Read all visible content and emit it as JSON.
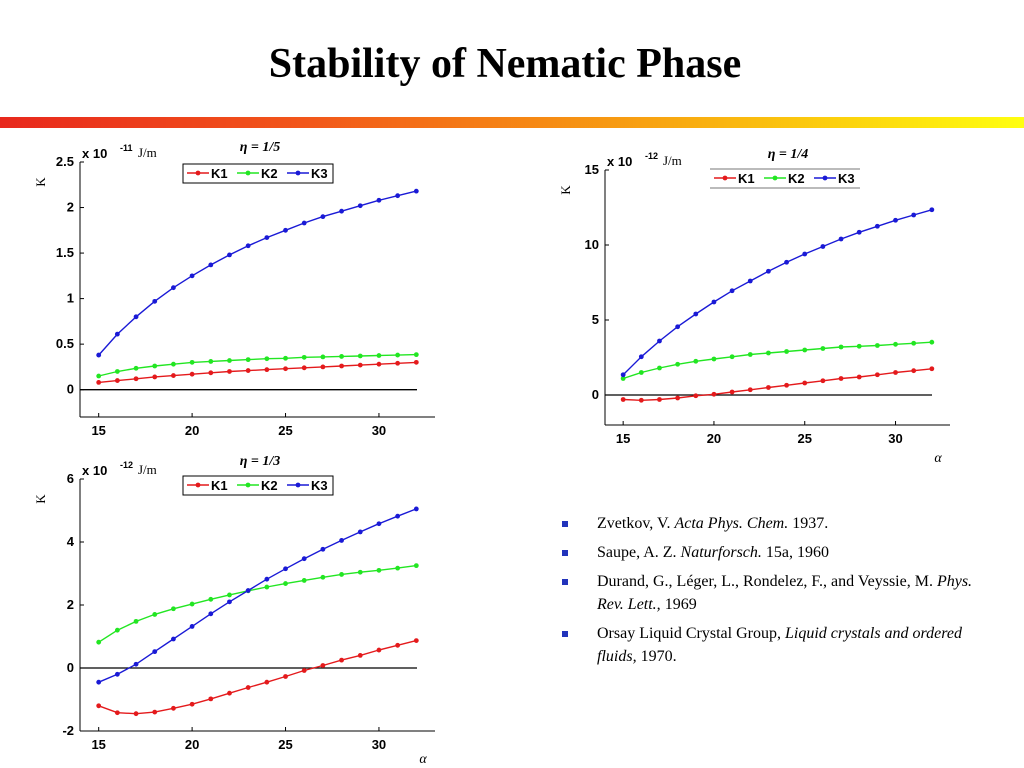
{
  "title": "Stability of Nematic Phase",
  "colors": {
    "K1": "#e41a1c",
    "K2": "#22e622",
    "K3": "#1a1ad6",
    "bullet": "#2233bb"
  },
  "chart_data": [
    {
      "type": "line",
      "annotation": "η = 1/5",
      "ylabel": "K",
      "y_multiplier": "x 10",
      "y_multiplier_exp": "-11",
      "y_unit": "J/m",
      "xlabel": "",
      "xlim": [
        14,
        33
      ],
      "ylim": [
        -0.3,
        2.5
      ],
      "xticks": [
        15,
        20,
        25,
        30
      ],
      "yticks": [
        0,
        0.5,
        1,
        1.5,
        2,
        2.5
      ],
      "ytick_labels": [
        "0",
        "0.5",
        "1",
        "1.5",
        "2",
        "2.5"
      ],
      "legend": [
        "K1",
        "K2",
        "K3"
      ],
      "legend_position": "top",
      "x": [
        15,
        16,
        17,
        18,
        19,
        20,
        21,
        22,
        23,
        24,
        25,
        26,
        27,
        28,
        29,
        30,
        31,
        32
      ],
      "series": [
        {
          "name": "K1",
          "values": [
            0.08,
            0.1,
            0.12,
            0.14,
            0.155,
            0.17,
            0.185,
            0.2,
            0.21,
            0.22,
            0.23,
            0.24,
            0.25,
            0.26,
            0.27,
            0.28,
            0.29,
            0.3
          ]
        },
        {
          "name": "K2",
          "values": [
            0.15,
            0.2,
            0.235,
            0.26,
            0.28,
            0.3,
            0.31,
            0.32,
            0.33,
            0.34,
            0.345,
            0.355,
            0.36,
            0.365,
            0.37,
            0.375,
            0.38,
            0.385
          ]
        },
        {
          "name": "K3",
          "values": [
            0.38,
            0.61,
            0.8,
            0.97,
            1.12,
            1.25,
            1.37,
            1.48,
            1.58,
            1.67,
            1.75,
            1.83,
            1.9,
            1.96,
            2.02,
            2.08,
            2.13,
            2.18
          ]
        }
      ]
    },
    {
      "type": "line",
      "annotation": "η = 1/4",
      "ylabel": "K",
      "y_multiplier": "x 10",
      "y_multiplier_exp": "-12",
      "y_unit": "J/m",
      "xlabel": "α",
      "xlim": [
        14,
        33
      ],
      "ylim": [
        -2,
        15
      ],
      "xticks": [
        15,
        20,
        25,
        30
      ],
      "yticks": [
        0,
        5,
        10,
        15
      ],
      "ytick_labels": [
        "0",
        "5",
        "10",
        "15"
      ],
      "legend": [
        "K1",
        "K2",
        "K3"
      ],
      "legend_position": "top",
      "x": [
        15,
        16,
        17,
        18,
        19,
        20,
        21,
        22,
        23,
        24,
        25,
        26,
        27,
        28,
        29,
        30,
        31,
        32
      ],
      "series": [
        {
          "name": "K1",
          "values": [
            -0.3,
            -0.35,
            -0.3,
            -0.2,
            -0.05,
            0.05,
            0.2,
            0.35,
            0.5,
            0.65,
            0.8,
            0.95,
            1.1,
            1.2,
            1.35,
            1.5,
            1.62,
            1.75
          ]
        },
        {
          "name": "K2",
          "values": [
            1.1,
            1.5,
            1.8,
            2.05,
            2.25,
            2.4,
            2.55,
            2.7,
            2.8,
            2.9,
            3.0,
            3.1,
            3.2,
            3.25,
            3.3,
            3.38,
            3.45,
            3.52
          ]
        },
        {
          "name": "K3",
          "values": [
            1.35,
            2.55,
            3.6,
            4.55,
            5.4,
            6.2,
            6.95,
            7.6,
            8.25,
            8.85,
            9.4,
            9.9,
            10.4,
            10.85,
            11.25,
            11.65,
            12.0,
            12.35
          ]
        }
      ]
    },
    {
      "type": "line",
      "annotation": "η = 1/3",
      "ylabel": "K",
      "y_multiplier": "x 10",
      "y_multiplier_exp": "-12",
      "y_unit": "J/m",
      "xlabel": "α",
      "xlim": [
        14,
        33
      ],
      "ylim": [
        -2,
        6
      ],
      "xticks": [
        15,
        20,
        25,
        30
      ],
      "yticks": [
        -2,
        0,
        2,
        4,
        6
      ],
      "ytick_labels": [
        "-2",
        "0",
        "2",
        "4",
        "6"
      ],
      "legend": [
        "K1",
        "K2",
        "K3"
      ],
      "legend_position": "top",
      "x": [
        15,
        16,
        17,
        18,
        19,
        20,
        21,
        22,
        23,
        24,
        25,
        26,
        27,
        28,
        29,
        30,
        31,
        32
      ],
      "series": [
        {
          "name": "K1",
          "values": [
            -1.2,
            -1.42,
            -1.45,
            -1.4,
            -1.28,
            -1.15,
            -0.98,
            -0.8,
            -0.62,
            -0.45,
            -0.27,
            -0.08,
            0.08,
            0.25,
            0.4,
            0.57,
            0.72,
            0.87
          ]
        },
        {
          "name": "K2",
          "values": [
            0.82,
            1.2,
            1.48,
            1.7,
            1.88,
            2.03,
            2.18,
            2.32,
            2.45,
            2.57,
            2.68,
            2.78,
            2.88,
            2.97,
            3.04,
            3.1,
            3.17,
            3.25
          ]
        },
        {
          "name": "K3",
          "values": [
            -0.45,
            -0.2,
            0.12,
            0.52,
            0.92,
            1.32,
            1.72,
            2.1,
            2.46,
            2.82,
            3.15,
            3.47,
            3.77,
            4.05,
            4.32,
            4.58,
            4.82,
            5.05
          ]
        }
      ]
    }
  ],
  "references": [
    {
      "parts": [
        {
          "t": "Zvetkov, V. "
        },
        {
          "t": "Acta Phys. Chem.",
          "i": true
        },
        {
          "t": " 1937."
        }
      ]
    },
    {
      "parts": [
        {
          "t": "Saupe, A. Z. "
        },
        {
          "t": "Naturforsch.",
          "i": true
        },
        {
          "t": " 15a, 1960"
        }
      ]
    },
    {
      "parts": [
        {
          "t": "Durand, G., Léger, L., Rondelez, F., and Veyssie, M. "
        },
        {
          "t": "Phys. Rev. Lett.,",
          "i": true
        },
        {
          "t": " 1969"
        }
      ]
    },
    {
      "parts": [
        {
          "t": "Orsay Liquid Crystal Group, "
        },
        {
          "t": "Liquid crystals and ordered fluids,",
          "i": true
        },
        {
          "t": " 1970."
        }
      ]
    }
  ]
}
